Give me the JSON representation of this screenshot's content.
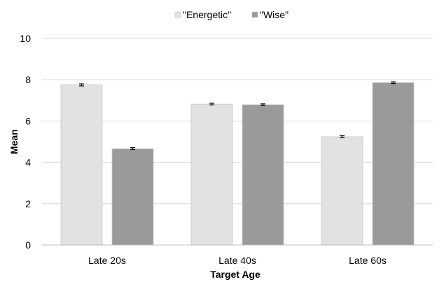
{
  "chart_data": {
    "type": "bar",
    "title": "",
    "xlabel": "Target Age",
    "ylabel": "Mean",
    "categories": [
      "Late 20s",
      "Late 40s",
      "Late 60s"
    ],
    "series": [
      {
        "name": "\"Energetic\"",
        "values": [
          7.75,
          6.82,
          5.24
        ],
        "errors": [
          0.05,
          0.04,
          0.05
        ],
        "color": "#e2e2e2"
      },
      {
        "name": "\"Wise\"",
        "values": [
          4.66,
          6.79,
          7.86
        ],
        "errors": [
          0.05,
          0.04,
          0.04
        ],
        "color": "#9a9a9a"
      }
    ],
    "ylim": [
      0,
      10
    ],
    "yticks": [
      "0",
      "2",
      "4",
      "6",
      "8",
      "10"
    ],
    "grid": true,
    "legend_position": "top-center",
    "error_bars": true
  }
}
